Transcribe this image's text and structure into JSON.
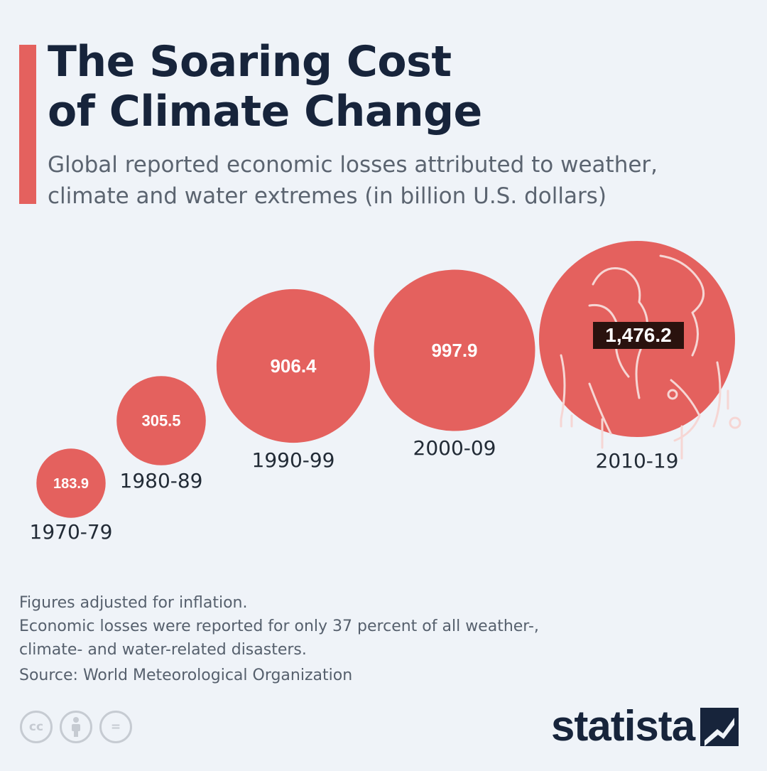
{
  "header": {
    "title": "The Soaring Cost\nof Climate Change",
    "subtitle": "Global reported economic losses attributed to weather, climate and water extremes (in billion U.S. dollars)"
  },
  "colors": {
    "bubble": "#e4615e",
    "accent_bar": "#e4615e",
    "highlight_box": "#2a120e",
    "text_dark": "#17243b",
    "text_muted": "#5b6470"
  },
  "chart_data": {
    "type": "bubble",
    "categories": [
      "1970-79",
      "1980-89",
      "1990-99",
      "2000-09",
      "2010-19"
    ],
    "values": [
      183.9,
      305.5,
      906.4,
      997.9,
      1476.2
    ],
    "value_labels": [
      "183.9",
      "305.5",
      "906.4",
      "997.9",
      "1,476.2"
    ],
    "highlight": "2010-19",
    "highlight_icon": "melting-globe-icon",
    "grid": false
  },
  "footer": {
    "notes": [
      "Figures adjusted for inflation.",
      "Economic losses were reported for only 37 percent of all weather-, climate- and water-related disasters."
    ],
    "source": "Source: World Meteorological Organization",
    "license_icons": [
      "cc-icon",
      "attribution-icon",
      "no-derivatives-icon"
    ],
    "license_cc_text": "cc",
    "license_nd_text": "=",
    "brand": "statista"
  }
}
